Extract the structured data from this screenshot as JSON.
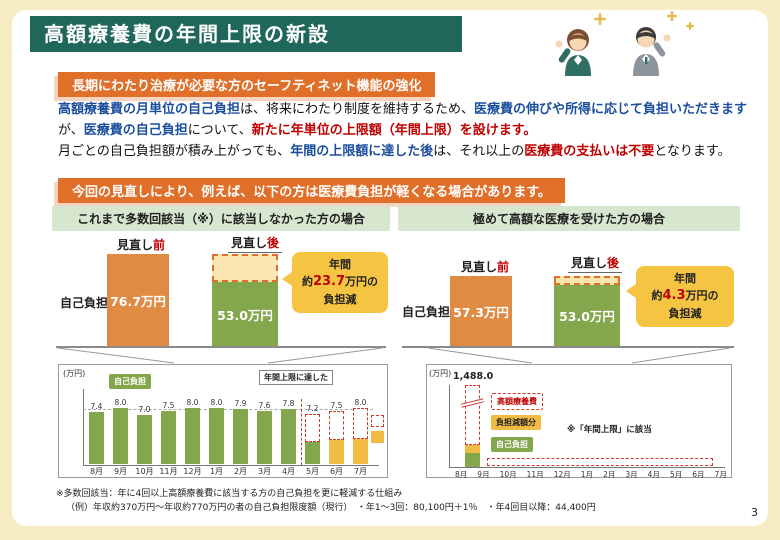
{
  "header": {
    "title": "高額療養費の年間上限の新設"
  },
  "intro": {
    "banner": "長期にわたり治療が必要な方のセーフティネット機能の強化",
    "p1": [
      {
        "t": "高額療養費の月単位の自己負担",
        "c": "blue"
      },
      {
        "t": "は、将来にわたり制度を維持するため、",
        "c": "black"
      },
      {
        "t": "医療費の伸びや所得に応じて負担いただきます",
        "c": "blue"
      },
      {
        "t": "が、",
        "c": "black"
      },
      {
        "t": "医療費の自己負担",
        "c": "blue"
      },
      {
        "t": "について、",
        "c": "black"
      },
      {
        "t": "新たに年単位の上限額（年間上限）を設けます。",
        "c": "red"
      }
    ],
    "p2": [
      {
        "t": "月ごとの自己負担額が積み上がっても、",
        "c": "black"
      },
      {
        "t": "年間の上限額に達した後",
        "c": "blue"
      },
      {
        "t": "は、それ以上の",
        "c": "black"
      },
      {
        "t": "医療費の支払いは不要",
        "c": "red"
      },
      {
        "t": "となります。",
        "c": "black"
      }
    ]
  },
  "examples_banner": "今回の見直しにより、例えば、以下の方は医療費負担が軽くなる場合があります。",
  "left_panel": {
    "title": "これまで多数回該当（※）に該当しなかった方の場合",
    "before_label": {
      "prefix": "見直し",
      "suffix": "前"
    },
    "after_label": {
      "prefix": "見直し",
      "suffix": "後"
    },
    "axis_label": "自己負担",
    "before_value": "76.7万円",
    "after_value": "53.0万円",
    "callout": {
      "line1": "年間",
      "approx": "約",
      "amount": "23.7",
      "unit": "万円の",
      "line3": "負担減"
    },
    "chart": {
      "ylabel": "(万円)",
      "legend_jiko": "自己負担",
      "cap_note": "年間上限に達した"
    }
  },
  "right_panel": {
    "title": "極めて高額な医療を受けた方の場合",
    "before_label": {
      "prefix": "見直し",
      "suffix": "前"
    },
    "after_label": {
      "prefix": "見直し",
      "suffix": "後"
    },
    "axis_label": "自己負担",
    "before_value": "57.3万円",
    "after_value": "53.0万円",
    "callout": {
      "line1": "年間",
      "approx": "約",
      "amount": "4.3",
      "unit": "万円の",
      "line3": "負担減"
    },
    "chart": {
      "ylabel": "(万円)",
      "total_label": "1,488.0",
      "legend": {
        "kogaku": "高額療養費",
        "gengaku": "負担減額分",
        "jiko": "自己負担"
      },
      "note": "※「年間上限」に該当"
    }
  },
  "footnotes": {
    "line1": "※多数回該当：年に4回以上高額療養費に該当する方の自己負担を更に軽減する仕組み",
    "line2": "（例）年収約370万円～年収約770万円の者の自己負担限度額（現行）　・年1～3回：80,100円＋1％　・年4回目以降：44,400円"
  },
  "page": {
    "number": "3"
  },
  "colors": {
    "accent_teal": "#1F675A",
    "accent_orange": "#E06F2A",
    "bar_orange": "#E08B44",
    "bar_green": "#84A64D",
    "callout_yellow": "#F6C443",
    "dashed_red": "#CC3A2E",
    "text_blue": "#1B4F9E",
    "text_red": "#BF0000"
  },
  "chart_data": [
    {
      "type": "bar",
      "title": "これまで多数回該当（※）に該当しなかった方の場合：年間自己負担の比較",
      "categories": [
        "見直し前",
        "見直し後"
      ],
      "values": [
        76.7,
        53.0
      ],
      "unit": "万円",
      "annotation": "年間約23.7万円の負担減"
    },
    {
      "type": "bar",
      "title": "月ごとの自己負担額（これまで多数回該当に該当しなかった方の例）",
      "ylabel": "万円",
      "ylim": [
        0,
        9
      ],
      "categories": [
        "8月",
        "9月",
        "10月",
        "11月",
        "12月",
        "1月",
        "2月",
        "3月",
        "4月",
        "5月",
        "6月",
        "7月"
      ],
      "values": [
        7.4,
        8.0,
        7.0,
        7.5,
        8.0,
        8.0,
        7.9,
        7.6,
        7.8,
        7.2,
        7.5,
        8.0
      ],
      "kinds": [
        "paid",
        "paid",
        "paid",
        "paid",
        "paid",
        "paid",
        "paid",
        "paid",
        "paid",
        "partial",
        "capped",
        "capped"
      ],
      "annotation": "年間上限に達した",
      "legend": [
        "自己負担",
        "高額療養費",
        "負担減額分"
      ]
    },
    {
      "type": "bar",
      "title": "極めて高額な医療を受けた方の場合：年間自己負担の比較",
      "categories": [
        "見直し前",
        "見直し後"
      ],
      "values": [
        57.3,
        53.0
      ],
      "unit": "万円",
      "annotation": "年間約4.3万円の負担減"
    },
    {
      "type": "bar",
      "title": "月ごとの医療費（極めて高額な医療を受けた方の例）",
      "ylabel": "万円",
      "categories": [
        "8月",
        "9月",
        "10月",
        "11月",
        "12月",
        "1月",
        "2月",
        "3月",
        "4月",
        "5月",
        "6月",
        "7月"
      ],
      "values": [
        1488.0,
        0,
        0,
        0,
        0,
        0,
        0,
        0,
        0,
        0,
        0,
        0
      ],
      "annotation": "※「年間上限」に該当",
      "legend": [
        "高額療養費",
        "負担減額分",
        "自己負担"
      ]
    }
  ]
}
